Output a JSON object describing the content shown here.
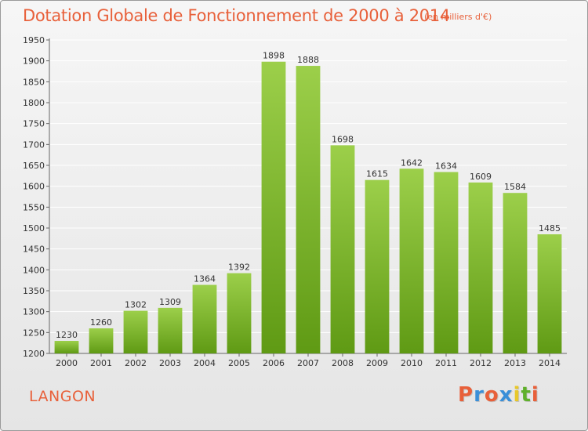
{
  "header": {
    "title": "Dotation Globale de Fonctionnement de 2000 à 2014",
    "subtitle": "(en milliers d'€)"
  },
  "footer": {
    "place": "LANGON",
    "logo": "Proxiti"
  },
  "colors": {
    "title": "#e8603a",
    "bar_light": "#9ccf4a",
    "bar_dark": "#5f9a14",
    "logo_letters": [
      "#e8603a",
      "#3a8fd8",
      "#e8603a",
      "#3a8fd8",
      "#e8c82a",
      "#5fb02a",
      "#e8603a"
    ]
  },
  "chart_data": {
    "type": "bar",
    "categories": [
      "2000",
      "2001",
      "2002",
      "2003",
      "2004",
      "2005",
      "2006",
      "2007",
      "2008",
      "2009",
      "2010",
      "2011",
      "2012",
      "2013",
      "2014"
    ],
    "values": [
      1230,
      1260,
      1302,
      1309,
      1364,
      1392,
      1898,
      1888,
      1698,
      1615,
      1642,
      1634,
      1609,
      1584,
      1485
    ],
    "ylim": [
      1200,
      1950
    ],
    "ytick_step": 50,
    "grid": true,
    "data_labels": true
  }
}
